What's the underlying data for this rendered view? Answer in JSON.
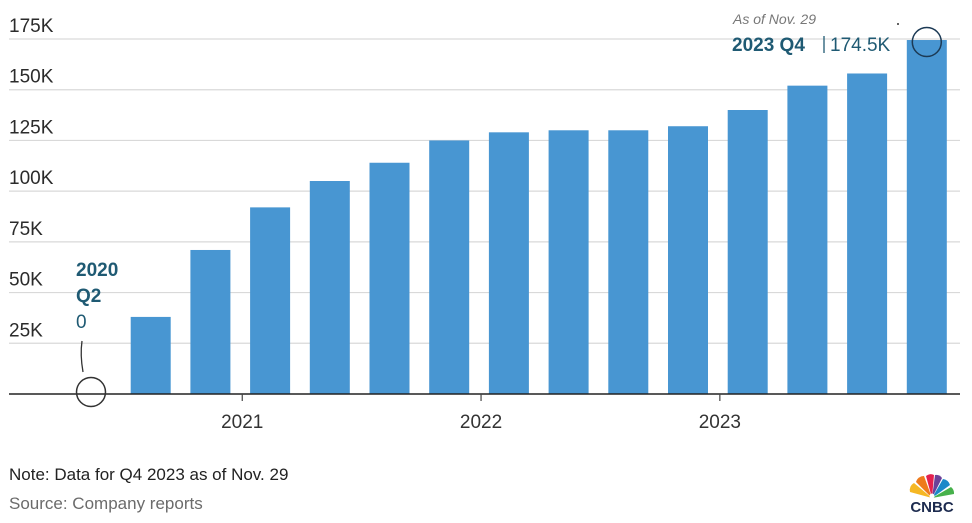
{
  "chart_data": {
    "type": "bar",
    "title": "",
    "xlabel": "",
    "ylabel": "",
    "ylim": [
      0,
      175000
    ],
    "yticks": [
      0,
      25000,
      50000,
      75000,
      100000,
      125000,
      150000,
      175000
    ],
    "ytick_labels": [
      "",
      "25K",
      "50K",
      "75K",
      "100K",
      "125K",
      "150K",
      "175K"
    ],
    "grid": true,
    "categories": [
      "2020 Q2",
      "2020 Q3",
      "2020 Q4",
      "2021 Q1",
      "2021 Q2",
      "2021 Q3",
      "2021 Q4",
      "2022 Q1",
      "2022 Q2",
      "2022 Q3",
      "2022 Q4",
      "2023 Q1",
      "2023 Q2",
      "2023 Q3",
      "2023 Q4"
    ],
    "values": [
      0,
      38000,
      71000,
      92000,
      105000,
      114000,
      125000,
      129000,
      130000,
      130000,
      132000,
      140000,
      152000,
      158000,
      174500
    ],
    "x_tick_labels": [
      {
        "label": "2021",
        "category": "2021 Q1"
      },
      {
        "label": "2022",
        "category": "2022 Q1"
      },
      {
        "label": "2023",
        "category": "2023 Q1"
      }
    ],
    "bar_color": "#4896d2",
    "annotations": [
      {
        "category": "2020 Q2",
        "lines": [
          "2020",
          "Q2"
        ],
        "value_label": "0"
      },
      {
        "category": "2023 Q4",
        "title": "2023 Q4",
        "value_label": "174.5K",
        "note": "As of Nov. 29"
      }
    ]
  },
  "footer": {
    "note": "Note: Data for Q4 2023 as of Nov. 29",
    "source": "Source: Company reports",
    "logo_text": "CNBC"
  }
}
